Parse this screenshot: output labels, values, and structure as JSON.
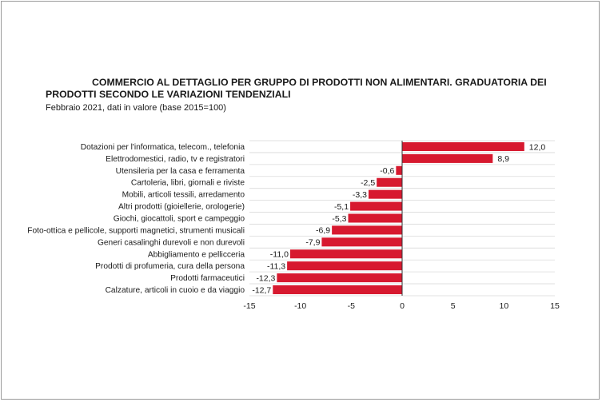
{
  "chart_data": {
    "type": "bar",
    "orientation": "horizontal",
    "title": "COMMERCIO AL DETTAGLIO PER GRUPPO DI PRODOTTI NON ALIMENTARI. GRADUATORIA DEI PRODOTTI SECONDO LE VARIAZIONI TENDENZIALI",
    "subtitle": "Febbraio 2021, dati in valore (base 2015=100)",
    "categories": [
      "Dotazioni per l'informatica, telecom., telefonia",
      "Elettrodomestici, radio, tv e registratori",
      "Utensileria per la casa e ferramenta",
      "Cartoleria, libri, giornali e riviste",
      "Mobili, articoli tessili, arredamento",
      "Altri prodotti (gioiellerie, orologerie)",
      "Giochi, giocattoli, sport e campeggio",
      "Foto-ottica e pellicole, supporti magnetici, strumenti  musicali",
      "Generi casalinghi durevoli e non durevoli",
      "Abbigliamento e pellicceria",
      "Prodotti di profumeria, cura della persona",
      "Prodotti farmaceutici",
      "Calzature, articoli in cuoio e da viaggio"
    ],
    "values": [
      12.0,
      8.9,
      -0.6,
      -2.5,
      -3.3,
      -5.1,
      -5.3,
      -6.9,
      -7.9,
      -11.0,
      -11.3,
      -12.3,
      -12.7
    ],
    "value_labels": [
      "12,0",
      "8,9",
      "-0,6",
      "-2,5",
      "-3,3",
      "-5,1",
      "-5,3",
      "-6,9",
      "-7,9",
      "-11,0",
      "-11,3",
      "-12,3",
      "-12,7"
    ],
    "xlim": [
      -15,
      15
    ],
    "xticks": [
      -15,
      -10,
      -5,
      0,
      5,
      10,
      15
    ],
    "xtick_labels": [
      "-15",
      "-10",
      "-5",
      "0",
      "5",
      "10",
      "15"
    ],
    "bar_color": "#d7192f",
    "grid": true,
    "legend": "none"
  }
}
